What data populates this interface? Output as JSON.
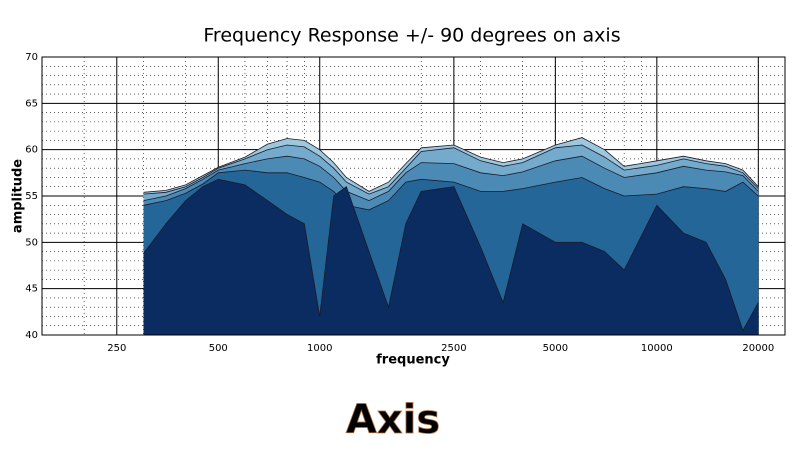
{
  "chart_data": {
    "type": "area",
    "title": "Frequency Response +/- 90 degrees on axis",
    "xlabel": "frequency",
    "ylabel": "amplitude",
    "xscale": "log",
    "grid": true,
    "xlim": [
      150,
      24000
    ],
    "ylim": [
      40,
      70
    ],
    "xticks": [
      250,
      500,
      1000,
      2500,
      5000,
      10000,
      20000
    ],
    "yticks": [
      40,
      45,
      50,
      55,
      60,
      65,
      70
    ],
    "x": [
      300,
      350,
      400,
      450,
      500,
      600,
      700,
      800,
      900,
      1000,
      1100,
      1200,
      1400,
      1600,
      1800,
      2000,
      2500,
      3000,
      3500,
      4000,
      5000,
      6000,
      7000,
      8000,
      10000,
      12000,
      14000,
      16000,
      18000,
      20000
    ],
    "series": [
      {
        "color": "#9cc7dc",
        "values": [
          55.4,
          55.6,
          56.2,
          57.2,
          58.1,
          59.2,
          60.6,
          61.2,
          61,
          60,
          58.6,
          57,
          55.5,
          56.5,
          58.5,
          60.2,
          60.5,
          59.2,
          58.6,
          59,
          60.5,
          61.3,
          60,
          58.2,
          58.8,
          59.3,
          58.8,
          58.5,
          57.8,
          56
        ]
      },
      {
        "color": "#74aacb",
        "values": [
          55.2,
          55.4,
          56,
          57,
          58,
          59,
          60,
          60.5,
          60.3,
          59.3,
          58,
          56.5,
          55.2,
          56,
          58,
          59.8,
          60.2,
          58.8,
          58.2,
          58.6,
          60.2,
          60.5,
          59.2,
          57.8,
          58.3,
          59,
          58.5,
          58.2,
          57.5,
          55.8
        ]
      },
      {
        "color": "#4a8ab5",
        "values": [
          54.5,
          55,
          55.8,
          56.8,
          57.8,
          58.5,
          59,
          59.3,
          59,
          58.2,
          57,
          55.5,
          54.5,
          55.5,
          57.5,
          58.6,
          58.5,
          57.5,
          57.2,
          57.6,
          58.8,
          59.3,
          58,
          57,
          57.5,
          58.2,
          57.8,
          57.6,
          57.2,
          55.5
        ]
      },
      {
        "color": "#236697",
        "values": [
          54,
          54.5,
          55.3,
          56.3,
          57.5,
          57.8,
          57.5,
          57.5,
          57,
          56.5,
          55.5,
          54,
          53.5,
          54.5,
          56.5,
          56.8,
          56.5,
          55.5,
          55.5,
          55.8,
          56.5,
          57,
          55.8,
          55,
          55.2,
          56,
          55.8,
          55.5,
          56.5,
          55
        ]
      },
      {
        "color": "#0b2c61",
        "values": [
          48.8,
          52,
          54.5,
          56,
          56.8,
          56.2,
          54.5,
          53,
          52,
          42,
          55,
          56,
          49,
          43,
          52,
          55.5,
          56,
          49.5,
          43.5,
          52,
          50,
          50,
          49,
          47,
          54,
          51,
          50,
          46,
          40.5,
          43.5
        ]
      }
    ]
  },
  "caption": "Axis"
}
